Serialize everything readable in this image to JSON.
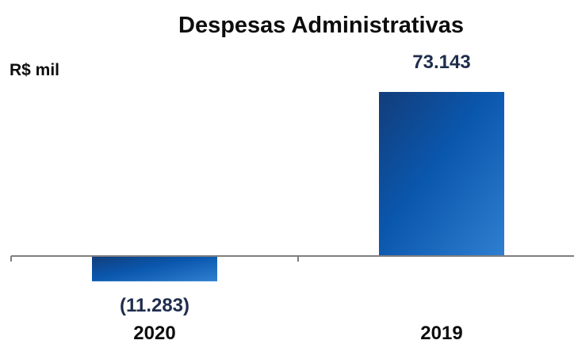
{
  "chart_data": {
    "type": "bar",
    "title": "Despesas Administrativas",
    "unit": "R$ mil",
    "categories": [
      "2020",
      "2019"
    ],
    "values": [
      -11283,
      73143
    ],
    "data_labels": [
      "(11.283)",
      "73.143"
    ],
    "xlabel": "",
    "ylabel": "",
    "ylim": [
      -11283,
      73143
    ],
    "grid": false,
    "legend": "none",
    "colors": {
      "bar_dark": "#123d7a",
      "bar_mid": "#0a57ae",
      "bar_light": "#2f7fd0",
      "axis": "#7f7f7f",
      "label": "#1f2d4d"
    }
  }
}
